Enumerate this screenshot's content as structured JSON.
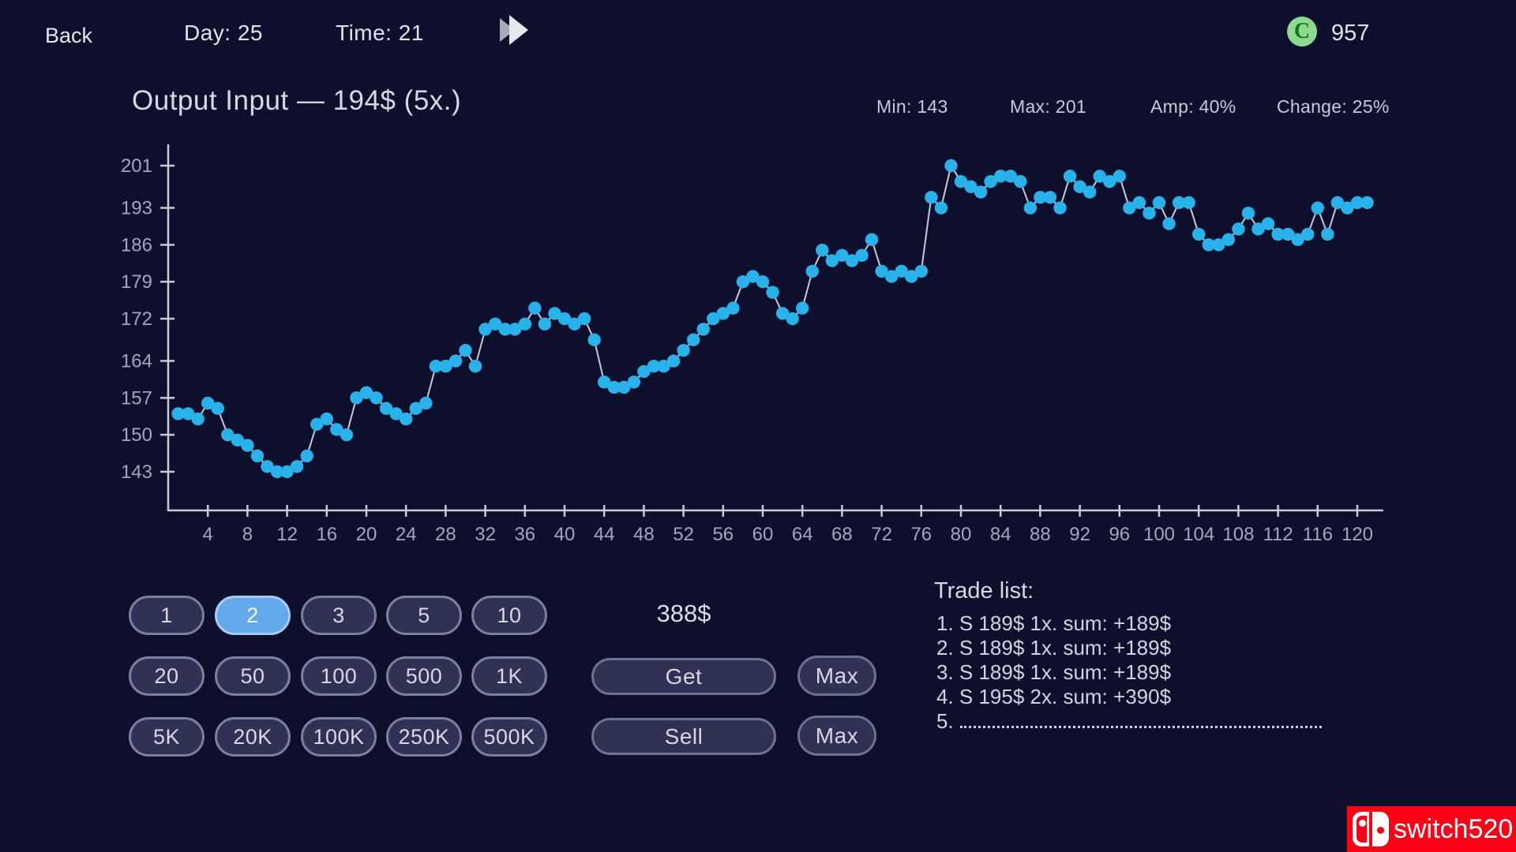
{
  "top_bar": {
    "back_label": "Back",
    "day_label": "Day: 25",
    "time_label": "Time: 21",
    "coin_letter": "C",
    "coins_value": "957"
  },
  "chart": {
    "title": "Output Input — 194$ (5x.)",
    "chart_data": {
      "type": "line",
      "title": "Output Input — 194$ (5x.)",
      "x_start": 1,
      "x_tick_step": 4,
      "x_tick_max": 120,
      "xlim": [
        0,
        122
      ],
      "ylim": [
        143,
        201
      ],
      "y_ticks": [
        201,
        193,
        186,
        179,
        172,
        164,
        157,
        150,
        143
      ],
      "grid": false,
      "legend": "none",
      "values": [
        154,
        154,
        153,
        156,
        155,
        150,
        149,
        148,
        146,
        144,
        143,
        143,
        144,
        146,
        152,
        153,
        151,
        150,
        157,
        158,
        157,
        155,
        154,
        153,
        155,
        156,
        163,
        163,
        164,
        166,
        163,
        170,
        171,
        170,
        170,
        171,
        174,
        171,
        173,
        172,
        171,
        172,
        168,
        160,
        159,
        159,
        160,
        162,
        163,
        163,
        164,
        166,
        168,
        170,
        172,
        173,
        174,
        179,
        180,
        179,
        177,
        173,
        172,
        174,
        181,
        185,
        183,
        184,
        183,
        184,
        187,
        181,
        180,
        181,
        180,
        181,
        195,
        193,
        201,
        198,
        197,
        196,
        198,
        199,
        199,
        198,
        193,
        195,
        195,
        193,
        199,
        197,
        196,
        199,
        198,
        199,
        193,
        194,
        192,
        194,
        190,
        194,
        194,
        188,
        186,
        186,
        187,
        189,
        192,
        189,
        190,
        188,
        188,
        187,
        188,
        193,
        188,
        194,
        193,
        194,
        194
      ],
      "stats": {
        "min": "Min: 143",
        "max": "Max: 201",
        "amp": "Amp: 40%",
        "change": "Change: 25%"
      }
    }
  },
  "quantity_buttons": {
    "selected": "2",
    "rows": [
      [
        "1",
        "2",
        "3",
        "5",
        "10"
      ],
      [
        "20",
        "50",
        "100",
        "500",
        "1K"
      ],
      [
        "5K",
        "20K",
        "100K",
        "250K",
        "500K"
      ]
    ]
  },
  "trade_panel": {
    "price": "388$",
    "get_label": "Get",
    "sell_label": "Sell",
    "max_label": "Max"
  },
  "trade_list": {
    "heading": "Trade list:",
    "entries": [
      {
        "text": "1. S 189$ 1x. sum: +189$",
        "dotted": false
      },
      {
        "text": "2. S 189$ 1x. sum: +189$",
        "dotted": false
      },
      {
        "text": "3. S 189$ 1x. sum: +189$",
        "dotted": false
      },
      {
        "text": "4. S 195$ 2x. sum: +390$",
        "dotted": false
      },
      {
        "text": "5.",
        "dotted": true
      }
    ]
  },
  "watermark": {
    "label": "switch520"
  },
  "colors": {
    "background": "#0d0f2d",
    "dot": "#29b2ea",
    "line": "#c9cbd4",
    "selected_button": "#62a9e9",
    "button_fill": "#2f3254",
    "button_border": "#7b809e",
    "coin_outer": "#8fd88f",
    "coin_inner": "#0d7c17",
    "watermark_red": "#fe0016"
  }
}
